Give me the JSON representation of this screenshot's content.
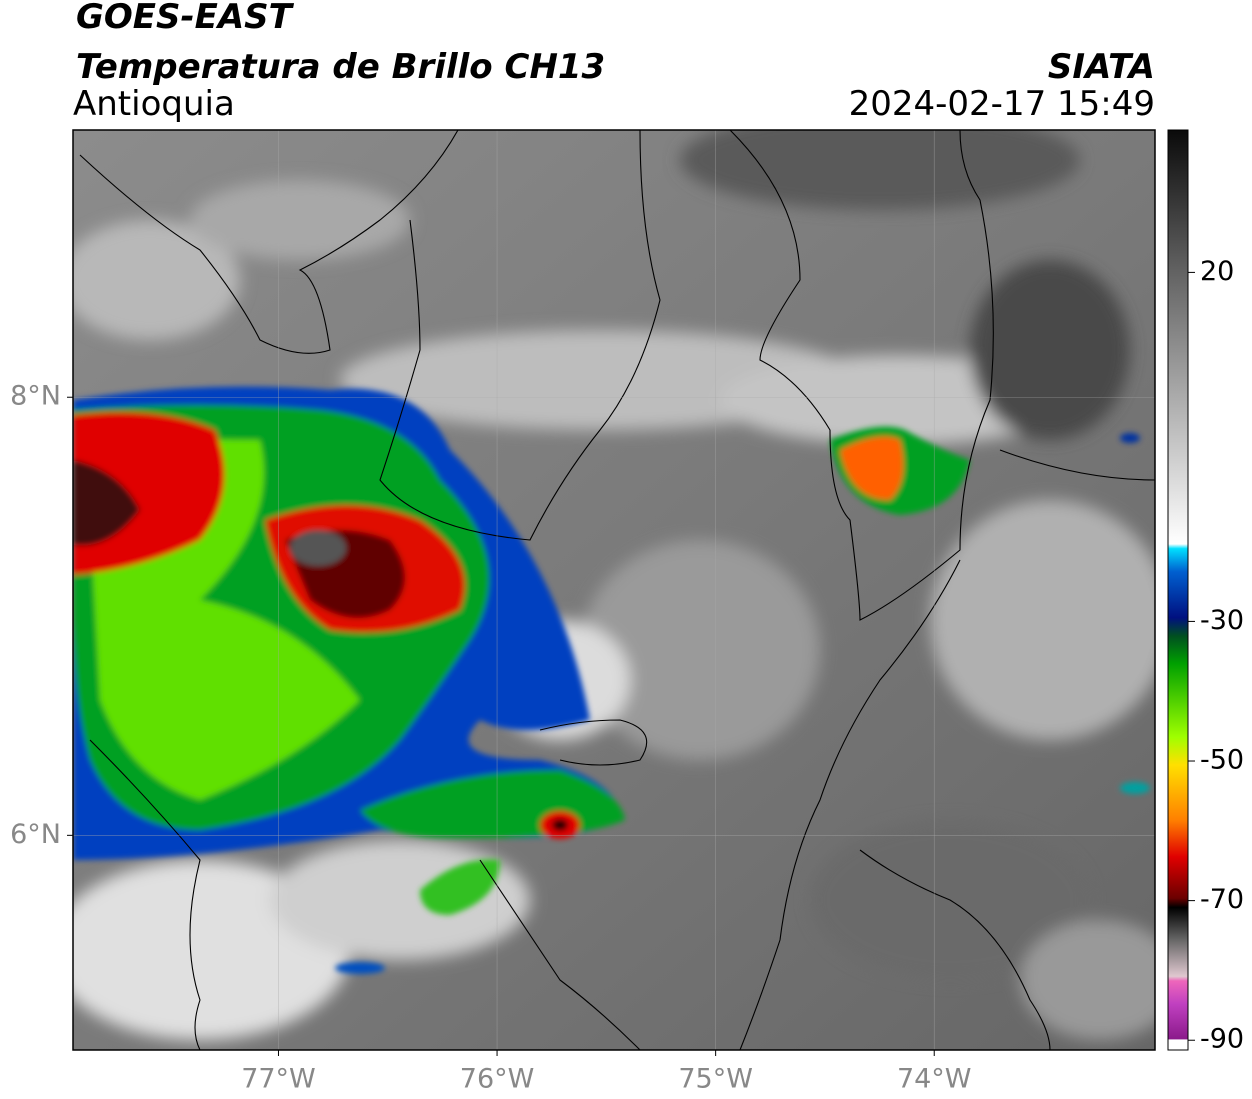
{
  "header": {
    "title": "GOES-EAST",
    "subtitle": "Temperatura de Brillo CH13",
    "region": "Antioquia",
    "source": "SIATA",
    "datetime": "2024-02-17 15:49"
  },
  "map": {
    "xlim": [
      -77.94,
      -72.99
    ],
    "ylim": [
      5.02,
      9.22
    ],
    "xticks": [
      {
        "value": -77,
        "label": "77°W"
      },
      {
        "value": -76,
        "label": "76°W"
      },
      {
        "value": -75,
        "label": "75°W"
      },
      {
        "value": -74,
        "label": "74°W"
      }
    ],
    "yticks": [
      {
        "value": 6,
        "label": "6°N"
      },
      {
        "value": 8,
        "label": "8°N"
      }
    ],
    "grid": true
  },
  "colorbar": {
    "lim": [
      -91.4,
      40.4
    ],
    "ticks": [
      -90,
      -70,
      -50,
      -30,
      20
    ]
  }
}
